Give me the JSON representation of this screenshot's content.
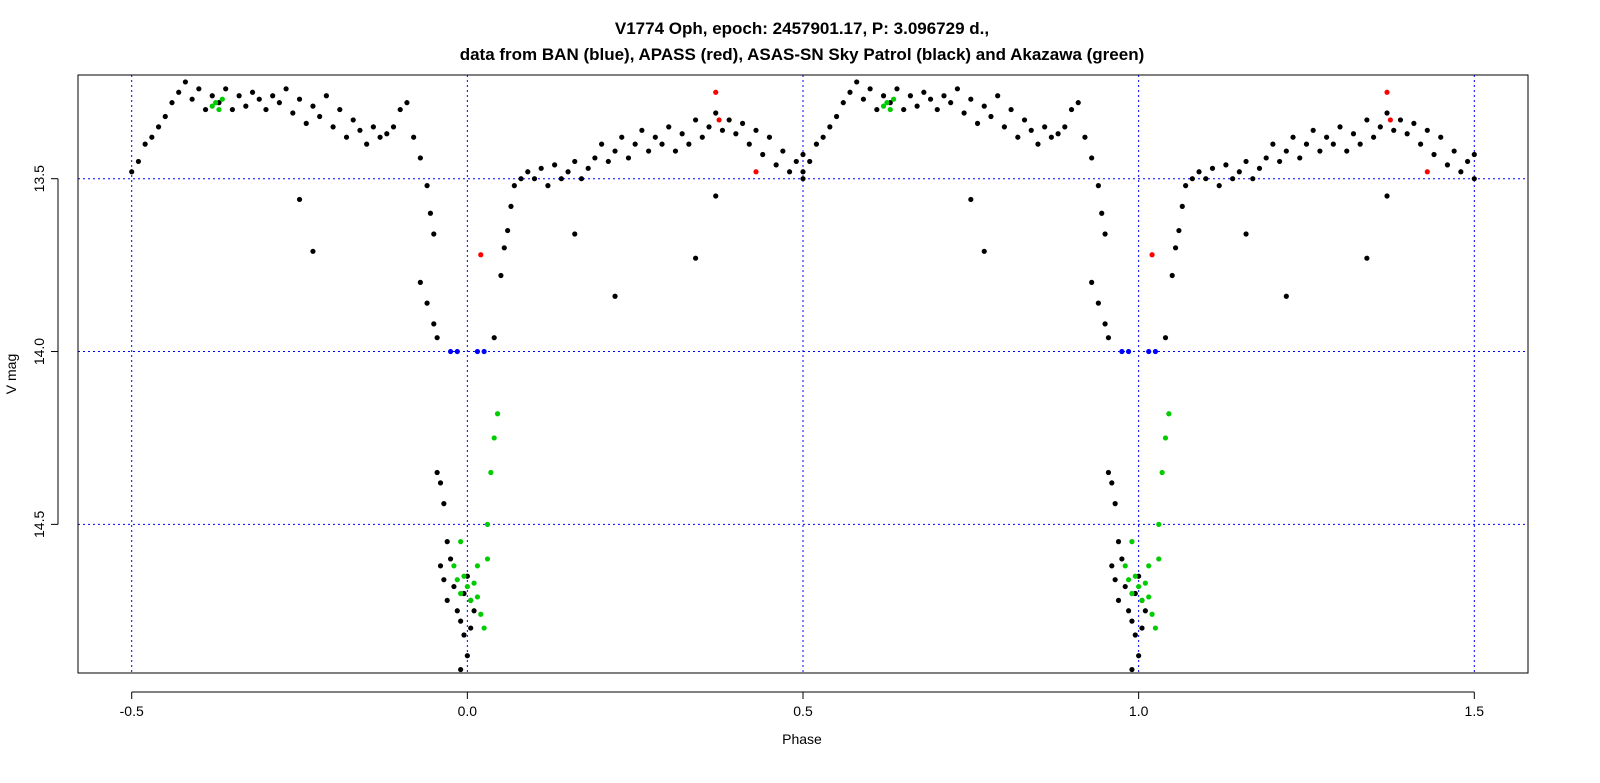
{
  "chart_data": {
    "type": "scatter",
    "title_line1": "V1774 Oph, epoch: 2457901.17, P: 3.096729 d.,",
    "title_line2": "data from BAN (blue), APASS (red), ASAS-SN Sky Patrol (black) and Akazawa (green)",
    "xlabel": "Phase",
    "ylabel": "V mag",
    "xlim": [
      -0.58,
      1.58
    ],
    "ylim": [
      14.93,
      13.2
    ],
    "y_inverted": true,
    "x_ticks": [
      -0.5,
      0.0,
      0.5,
      1.0,
      1.5
    ],
    "x_tick_labels": [
      "-0.5",
      "0.0",
      "0.5",
      "1.0",
      "1.5"
    ],
    "y_ticks": [
      13.5,
      14.0,
      14.5
    ],
    "y_tick_labels": [
      "13.5",
      "14.0",
      "14.5"
    ],
    "grid": true,
    "grid_color": "#0000ff",
    "phase_repeat": 1.0,
    "series": [
      {
        "color": "#000000",
        "points": [
          [
            -0.5,
            13.48
          ],
          [
            -0.49,
            13.45
          ],
          [
            -0.48,
            13.4
          ],
          [
            -0.47,
            13.38
          ],
          [
            -0.46,
            13.35
          ],
          [
            -0.45,
            13.32
          ],
          [
            -0.44,
            13.28
          ],
          [
            -0.43,
            13.25
          ],
          [
            -0.42,
            13.22
          ],
          [
            -0.41,
            13.27
          ],
          [
            -0.4,
            13.24
          ],
          [
            -0.39,
            13.3
          ],
          [
            -0.38,
            13.26
          ],
          [
            -0.37,
            13.28
          ],
          [
            -0.36,
            13.24
          ],
          [
            -0.35,
            13.3
          ],
          [
            -0.34,
            13.26
          ],
          [
            -0.33,
            13.29
          ],
          [
            -0.32,
            13.25
          ],
          [
            -0.31,
            13.27
          ],
          [
            -0.3,
            13.3
          ],
          [
            -0.29,
            13.26
          ],
          [
            -0.28,
            13.28
          ],
          [
            -0.27,
            13.24
          ],
          [
            -0.26,
            13.31
          ],
          [
            -0.25,
            13.27
          ],
          [
            -0.24,
            13.34
          ],
          [
            -0.23,
            13.29
          ],
          [
            -0.22,
            13.32
          ],
          [
            -0.21,
            13.26
          ],
          [
            -0.2,
            13.35
          ],
          [
            -0.19,
            13.3
          ],
          [
            -0.18,
            13.38
          ],
          [
            -0.17,
            13.33
          ],
          [
            -0.16,
            13.36
          ],
          [
            -0.15,
            13.4
          ],
          [
            -0.14,
            13.35
          ],
          [
            -0.13,
            13.38
          ],
          [
            -0.12,
            13.37
          ],
          [
            -0.11,
            13.35
          ],
          [
            -0.1,
            13.3
          ],
          [
            -0.09,
            13.28
          ],
          [
            -0.08,
            13.38
          ],
          [
            -0.07,
            13.44
          ],
          [
            -0.06,
            13.52
          ],
          [
            -0.055,
            13.6
          ],
          [
            -0.05,
            13.66
          ],
          [
            -0.07,
            13.8
          ],
          [
            -0.06,
            13.86
          ],
          [
            -0.05,
            13.92
          ],
          [
            -0.045,
            13.96
          ],
          [
            -0.25,
            13.56
          ],
          [
            -0.23,
            13.71
          ],
          [
            -0.045,
            14.35
          ],
          [
            -0.04,
            14.38
          ],
          [
            -0.035,
            14.44
          ],
          [
            -0.03,
            14.55
          ],
          [
            -0.04,
            14.62
          ],
          [
            -0.035,
            14.66
          ],
          [
            -0.03,
            14.72
          ],
          [
            -0.025,
            14.6
          ],
          [
            -0.02,
            14.68
          ],
          [
            -0.015,
            14.75
          ],
          [
            -0.01,
            14.78
          ],
          [
            -0.005,
            14.82
          ],
          [
            0.0,
            14.88
          ],
          [
            0.005,
            14.8
          ],
          [
            -0.005,
            14.7
          ],
          [
            0.01,
            14.75
          ],
          [
            0.0,
            14.65
          ],
          [
            0.005,
            14.72
          ],
          [
            -0.01,
            14.92
          ],
          [
            0.04,
            13.96
          ],
          [
            0.05,
            13.78
          ],
          [
            0.055,
            13.7
          ],
          [
            0.06,
            13.65
          ],
          [
            0.065,
            13.58
          ],
          [
            0.07,
            13.52
          ],
          [
            0.08,
            13.5
          ],
          [
            0.09,
            13.48
          ],
          [
            0.1,
            13.5
          ],
          [
            0.11,
            13.47
          ],
          [
            0.12,
            13.52
          ],
          [
            0.13,
            13.46
          ],
          [
            0.14,
            13.5
          ],
          [
            0.15,
            13.48
          ],
          [
            0.16,
            13.45
          ],
          [
            0.17,
            13.5
          ],
          [
            0.18,
            13.47
          ],
          [
            0.19,
            13.44
          ],
          [
            0.2,
            13.4
          ],
          [
            0.21,
            13.45
          ],
          [
            0.22,
            13.42
          ],
          [
            0.23,
            13.38
          ],
          [
            0.24,
            13.44
          ],
          [
            0.25,
            13.4
          ],
          [
            0.26,
            13.36
          ],
          [
            0.27,
            13.42
          ],
          [
            0.28,
            13.38
          ],
          [
            0.29,
            13.4
          ],
          [
            0.3,
            13.35
          ],
          [
            0.31,
            13.42
          ],
          [
            0.32,
            13.37
          ],
          [
            0.33,
            13.4
          ],
          [
            0.34,
            13.33
          ],
          [
            0.35,
            13.38
          ],
          [
            0.36,
            13.35
          ],
          [
            0.37,
            13.31
          ],
          [
            0.38,
            13.36
          ],
          [
            0.39,
            13.33
          ],
          [
            0.4,
            13.37
          ],
          [
            0.41,
            13.34
          ],
          [
            0.42,
            13.4
          ],
          [
            0.43,
            13.36
          ],
          [
            0.44,
            13.43
          ],
          [
            0.45,
            13.38
          ],
          [
            0.46,
            13.46
          ],
          [
            0.47,
            13.42
          ],
          [
            0.48,
            13.48
          ],
          [
            0.49,
            13.45
          ],
          [
            0.5,
            13.5
          ],
          [
            0.5,
            13.43
          ],
          [
            0.16,
            13.66
          ],
          [
            0.22,
            13.84
          ],
          [
            0.34,
            13.73
          ],
          [
            0.37,
            13.55
          ]
        ]
      },
      {
        "color": "#ff0000",
        "points": [
          [
            0.02,
            13.72
          ],
          [
            0.37,
            13.25
          ],
          [
            0.375,
            13.33
          ],
          [
            0.43,
            13.48
          ]
        ]
      },
      {
        "color": "#0000ff",
        "points": [
          [
            -0.025,
            14.0
          ],
          [
            -0.015,
            14.0
          ],
          [
            0.015,
            14.0
          ],
          [
            0.025,
            14.0
          ]
        ]
      },
      {
        "color": "#00cc00",
        "points": [
          [
            -0.375,
            13.28
          ],
          [
            -0.37,
            13.3
          ],
          [
            -0.38,
            13.29
          ],
          [
            -0.365,
            13.27
          ],
          [
            -0.02,
            14.62
          ],
          [
            -0.015,
            14.66
          ],
          [
            -0.01,
            14.7
          ],
          [
            -0.005,
            14.65
          ],
          [
            0.0,
            14.68
          ],
          [
            0.005,
            14.72
          ],
          [
            0.01,
            14.67
          ],
          [
            0.015,
            14.71
          ],
          [
            0.02,
            14.76
          ],
          [
            0.025,
            14.8
          ],
          [
            0.03,
            14.6
          ],
          [
            0.03,
            14.5
          ],
          [
            0.035,
            14.35
          ],
          [
            0.04,
            14.25
          ],
          [
            0.045,
            14.18
          ],
          [
            -0.01,
            14.55
          ],
          [
            0.015,
            14.62
          ]
        ]
      }
    ]
  }
}
